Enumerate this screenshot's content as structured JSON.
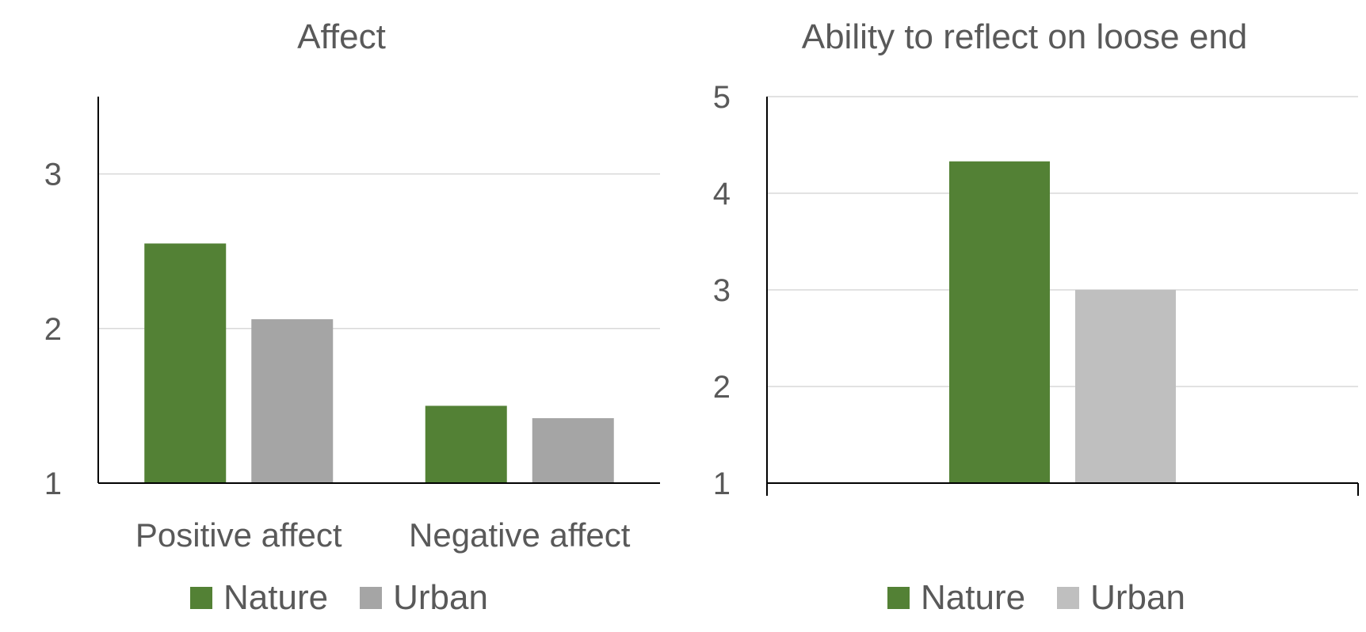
{
  "chart_data": [
    {
      "type": "bar",
      "title": "Affect",
      "categories": [
        "Positive affect",
        "Negative affect"
      ],
      "series": [
        {
          "name": "Nature",
          "values": [
            2.55,
            1.5
          ],
          "color": "#538135"
        },
        {
          "name": "Urban",
          "values": [
            2.06,
            1.42
          ],
          "color": "#A5A5A5"
        }
      ],
      "yticks": [
        1,
        2,
        3
      ],
      "ylim": [
        1,
        3.5
      ],
      "grid": true,
      "legend": "bottom"
    },
    {
      "type": "bar",
      "title": "Ability to reflect on loose end",
      "categories": [
        ""
      ],
      "series": [
        {
          "name": "Nature",
          "values": [
            4.33
          ],
          "color": "#538135"
        },
        {
          "name": "Urban",
          "values": [
            3.0
          ],
          "color": "#BFBFBF"
        }
      ],
      "yticks": [
        1,
        2,
        3,
        4,
        5
      ],
      "ylim": [
        1,
        5
      ],
      "grid": true,
      "legend": "bottom"
    }
  ]
}
